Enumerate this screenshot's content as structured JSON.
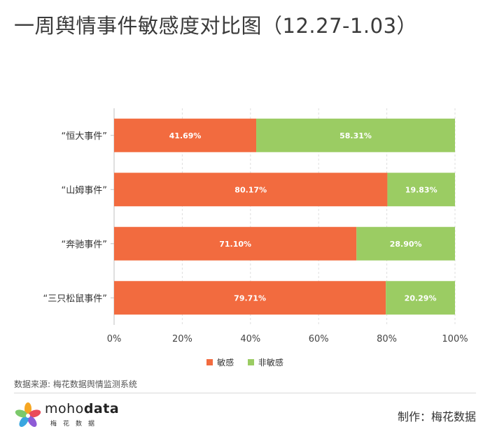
{
  "title": "一周舆情事件敏感度对比图（12.27-1.03）",
  "chart_data": {
    "type": "bar",
    "orientation": "horizontal",
    "stacked": true,
    "categories": [
      "“恒大事件”",
      "“山姆事件”",
      "“奔驰事件”",
      "“三只松鼠事件”"
    ],
    "series": [
      {
        "name": "敏感",
        "color": "#f26b3f",
        "values": [
          41.69,
          80.17,
          71.1,
          79.71
        ]
      },
      {
        "name": "非敏感",
        "color": "#9bcc63",
        "values": [
          58.31,
          19.83,
          28.9,
          20.29
        ]
      }
    ],
    "data_labels": [
      [
        "41.69%",
        "80.17%",
        "71.10%",
        "79.71%"
      ],
      [
        "58.31%",
        "19.83%",
        "28.90%",
        "20.29%"
      ]
    ],
    "xlim": [
      0,
      100
    ],
    "xticks": [
      "0%",
      "20%",
      "40%",
      "60%",
      "80%",
      "100%"
    ],
    "grid": true,
    "legend_position": "bottom"
  },
  "legend": [
    {
      "label": "敏感",
      "color": "#f26b3f"
    },
    {
      "label": "非敏感",
      "color": "#9bcc63"
    }
  ],
  "source": "数据来源: 梅花数据舆情监测系统",
  "brand": {
    "prefix": "moho",
    "suffix": "data",
    "cn": "梅花数据"
  },
  "credit": "制作：梅花数据"
}
